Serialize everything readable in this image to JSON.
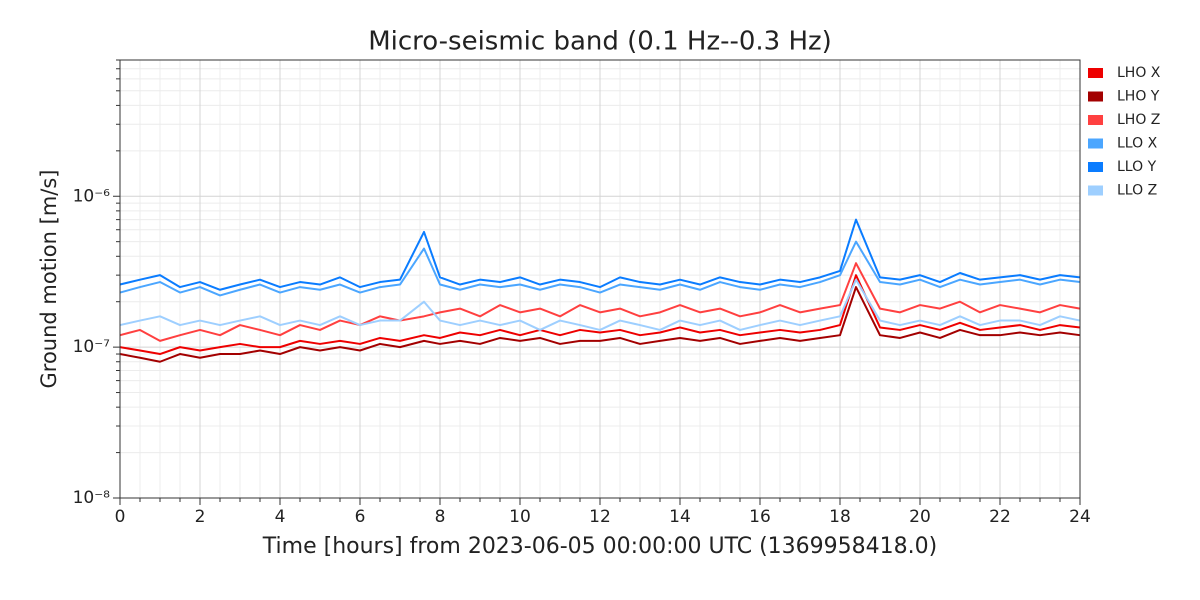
{
  "chart_data": {
    "type": "line",
    "title": "Micro-seismic band (0.1 Hz--0.3 Hz)",
    "xlabel": "Time [hours] from 2023-06-05 00:00:00 UTC (1369958418.0)",
    "ylabel": "Ground motion [m/s]",
    "yscale": "log",
    "grid": true,
    "legend_loc": "outside upper right",
    "xlim": [
      0,
      24
    ],
    "xticks": [
      0,
      2,
      4,
      6,
      8,
      10,
      12,
      14,
      16,
      18,
      20,
      22,
      24
    ],
    "ylim": [
      1e-08,
      8e-06
    ],
    "yticks": [
      {
        "value": 1e-08,
        "label": "10⁻⁸"
      },
      {
        "value": 1e-07,
        "label": "10⁻⁷"
      },
      {
        "value": 1e-06,
        "label": "10⁻⁶"
      }
    ],
    "x": [
      0,
      0.5,
      1,
      1.5,
      2,
      2.5,
      3,
      3.5,
      4,
      4.5,
      5,
      5.5,
      6,
      6.5,
      7,
      7.6,
      8,
      8.5,
      9,
      9.5,
      10,
      10.5,
      11,
      11.5,
      12,
      12.5,
      13,
      13.5,
      14,
      14.5,
      15,
      15.5,
      16,
      16.5,
      17,
      17.5,
      18,
      18.4,
      19,
      19.5,
      20,
      20.5,
      21,
      21.5,
      22,
      22.5,
      23,
      23.5,
      24
    ],
    "series": [
      {
        "name": "LHO X",
        "color": "#ee0000",
        "values": [
          1e-07,
          9.5e-08,
          9e-08,
          1e-07,
          9.5e-08,
          1e-07,
          1.05e-07,
          1e-07,
          1e-07,
          1.1e-07,
          1.05e-07,
          1.1e-07,
          1.05e-07,
          1.15e-07,
          1.1e-07,
          1.2e-07,
          1.15e-07,
          1.25e-07,
          1.2e-07,
          1.3e-07,
          1.2e-07,
          1.3e-07,
          1.2e-07,
          1.3e-07,
          1.25e-07,
          1.3e-07,
          1.2e-07,
          1.25e-07,
          1.35e-07,
          1.25e-07,
          1.3e-07,
          1.2e-07,
          1.25e-07,
          1.3e-07,
          1.25e-07,
          1.3e-07,
          1.4e-07,
          3e-07,
          1.35e-07,
          1.3e-07,
          1.4e-07,
          1.3e-07,
          1.45e-07,
          1.3e-07,
          1.35e-07,
          1.4e-07,
          1.3e-07,
          1.4e-07,
          1.35e-07
        ]
      },
      {
        "name": "LHO Y",
        "color": "#a30000",
        "values": [
          9e-08,
          8.5e-08,
          8e-08,
          9e-08,
          8.5e-08,
          9e-08,
          9e-08,
          9.5e-08,
          9e-08,
          1e-07,
          9.5e-08,
          1e-07,
          9.5e-08,
          1.05e-07,
          1e-07,
          1.1e-07,
          1.05e-07,
          1.1e-07,
          1.05e-07,
          1.15e-07,
          1.1e-07,
          1.15e-07,
          1.05e-07,
          1.1e-07,
          1.1e-07,
          1.15e-07,
          1.05e-07,
          1.1e-07,
          1.15e-07,
          1.1e-07,
          1.15e-07,
          1.05e-07,
          1.1e-07,
          1.15e-07,
          1.1e-07,
          1.15e-07,
          1.2e-07,
          2.5e-07,
          1.2e-07,
          1.15e-07,
          1.25e-07,
          1.15e-07,
          1.3e-07,
          1.2e-07,
          1.2e-07,
          1.25e-07,
          1.2e-07,
          1.25e-07,
          1.2e-07
        ]
      },
      {
        "name": "LHO Z",
        "color": "#ff4040",
        "values": [
          1.2e-07,
          1.3e-07,
          1.1e-07,
          1.2e-07,
          1.3e-07,
          1.2e-07,
          1.4e-07,
          1.3e-07,
          1.2e-07,
          1.4e-07,
          1.3e-07,
          1.5e-07,
          1.4e-07,
          1.6e-07,
          1.5e-07,
          1.6e-07,
          1.7e-07,
          1.8e-07,
          1.6e-07,
          1.9e-07,
          1.7e-07,
          1.8e-07,
          1.6e-07,
          1.9e-07,
          1.7e-07,
          1.8e-07,
          1.6e-07,
          1.7e-07,
          1.9e-07,
          1.7e-07,
          1.8e-07,
          1.6e-07,
          1.7e-07,
          1.9e-07,
          1.7e-07,
          1.8e-07,
          1.9e-07,
          3.6e-07,
          1.8e-07,
          1.7e-07,
          1.9e-07,
          1.8e-07,
          2e-07,
          1.7e-07,
          1.9e-07,
          1.8e-07,
          1.7e-07,
          1.9e-07,
          1.8e-07
        ]
      },
      {
        "name": "LLO X",
        "color": "#4ba6ff",
        "values": [
          2.3e-07,
          2.5e-07,
          2.7e-07,
          2.3e-07,
          2.5e-07,
          2.2e-07,
          2.4e-07,
          2.6e-07,
          2.3e-07,
          2.5e-07,
          2.4e-07,
          2.6e-07,
          2.3e-07,
          2.5e-07,
          2.6e-07,
          4.5e-07,
          2.6e-07,
          2.4e-07,
          2.6e-07,
          2.5e-07,
          2.6e-07,
          2.4e-07,
          2.6e-07,
          2.5e-07,
          2.3e-07,
          2.6e-07,
          2.5e-07,
          2.4e-07,
          2.6e-07,
          2.4e-07,
          2.7e-07,
          2.5e-07,
          2.4e-07,
          2.6e-07,
          2.5e-07,
          2.7e-07,
          3e-07,
          5e-07,
          2.7e-07,
          2.6e-07,
          2.8e-07,
          2.5e-07,
          2.8e-07,
          2.6e-07,
          2.7e-07,
          2.8e-07,
          2.6e-07,
          2.8e-07,
          2.7e-07
        ]
      },
      {
        "name": "LLO Y",
        "color": "#0a7cff",
        "values": [
          2.6e-07,
          2.8e-07,
          3e-07,
          2.5e-07,
          2.7e-07,
          2.4e-07,
          2.6e-07,
          2.8e-07,
          2.5e-07,
          2.7e-07,
          2.6e-07,
          2.9e-07,
          2.5e-07,
          2.7e-07,
          2.8e-07,
          5.8e-07,
          2.9e-07,
          2.6e-07,
          2.8e-07,
          2.7e-07,
          2.9e-07,
          2.6e-07,
          2.8e-07,
          2.7e-07,
          2.5e-07,
          2.9e-07,
          2.7e-07,
          2.6e-07,
          2.8e-07,
          2.6e-07,
          2.9e-07,
          2.7e-07,
          2.6e-07,
          2.8e-07,
          2.7e-07,
          2.9e-07,
          3.2e-07,
          7e-07,
          2.9e-07,
          2.8e-07,
          3e-07,
          2.7e-07,
          3.1e-07,
          2.8e-07,
          2.9e-07,
          3e-07,
          2.8e-07,
          3e-07,
          2.9e-07
        ]
      },
      {
        "name": "LLO Z",
        "color": "#9ecfff",
        "values": [
          1.4e-07,
          1.5e-07,
          1.6e-07,
          1.4e-07,
          1.5e-07,
          1.4e-07,
          1.5e-07,
          1.6e-07,
          1.4e-07,
          1.5e-07,
          1.4e-07,
          1.6e-07,
          1.4e-07,
          1.5e-07,
          1.5e-07,
          2e-07,
          1.5e-07,
          1.4e-07,
          1.5e-07,
          1.4e-07,
          1.5e-07,
          1.3e-07,
          1.5e-07,
          1.4e-07,
          1.3e-07,
          1.5e-07,
          1.4e-07,
          1.3e-07,
          1.5e-07,
          1.4e-07,
          1.5e-07,
          1.3e-07,
          1.4e-07,
          1.5e-07,
          1.4e-07,
          1.5e-07,
          1.6e-07,
          2.8e-07,
          1.5e-07,
          1.4e-07,
          1.5e-07,
          1.4e-07,
          1.6e-07,
          1.4e-07,
          1.5e-07,
          1.5e-07,
          1.4e-07,
          1.6e-07,
          1.5e-07
        ]
      }
    ]
  }
}
